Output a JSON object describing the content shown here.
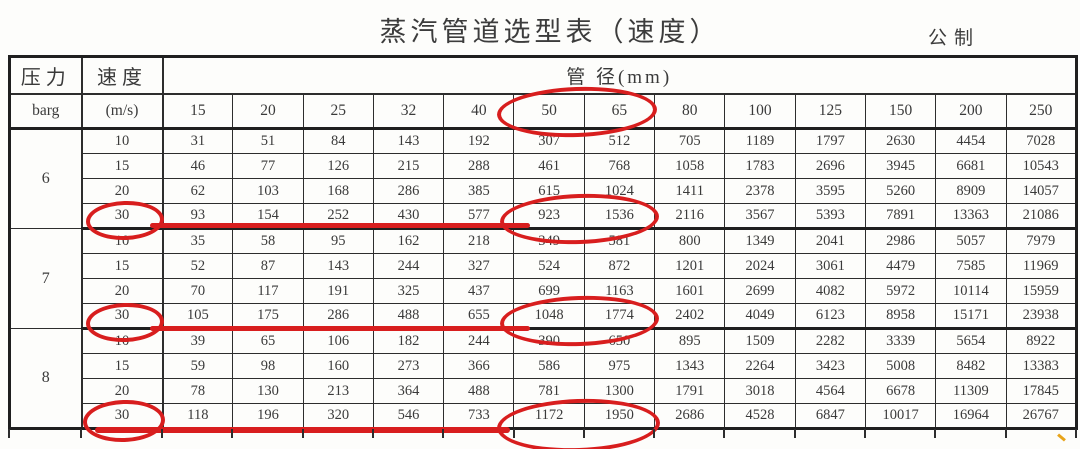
{
  "title": "蒸汽管道选型表（速度）",
  "unit_label": "公制",
  "table": {
    "col1_header": "压力",
    "col2_header": "速度",
    "span_header": "管 径(mm)",
    "col1_subheader": "barg",
    "col2_subheader": "(m/s)",
    "diameters": [
      "15",
      "20",
      "25",
      "32",
      "40",
      "50",
      "65",
      "80",
      "100",
      "125",
      "150",
      "200",
      "250"
    ],
    "groups": [
      {
        "pressure": "6",
        "rows": [
          {
            "velocity": "10",
            "values": [
              31,
              51,
              84,
              143,
              192,
              307,
              512,
              705,
              1189,
              1797,
              2630,
              4454,
              7028
            ]
          },
          {
            "velocity": "15",
            "values": [
              46,
              77,
              126,
              215,
              288,
              461,
              768,
              1058,
              1783,
              2696,
              3945,
              6681,
              10543
            ]
          },
          {
            "velocity": "20",
            "values": [
              62,
              103,
              168,
              286,
              385,
              615,
              1024,
              1411,
              2378,
              3595,
              5260,
              8909,
              14057
            ]
          },
          {
            "velocity": "30",
            "values": [
              93,
              154,
              252,
              430,
              577,
              923,
              1536,
              2116,
              3567,
              5393,
              7891,
              13363,
              21086
            ]
          }
        ]
      },
      {
        "pressure": "7",
        "rows": [
          {
            "velocity": "10",
            "values": [
              35,
              58,
              95,
              162,
              218,
              349,
              581,
              800,
              1349,
              2041,
              2986,
              5057,
              7979
            ]
          },
          {
            "velocity": "15",
            "values": [
              52,
              87,
              143,
              244,
              327,
              524,
              872,
              1201,
              2024,
              3061,
              4479,
              7585,
              11969
            ]
          },
          {
            "velocity": "20",
            "values": [
              70,
              117,
              191,
              325,
              437,
              699,
              1163,
              1601,
              2699,
              4082,
              5972,
              10114,
              15959
            ]
          },
          {
            "velocity": "30",
            "values": [
              105,
              175,
              286,
              488,
              655,
              1048,
              1774,
              2402,
              4049,
              6123,
              8958,
              15171,
              23938
            ]
          }
        ]
      },
      {
        "pressure": "8",
        "rows": [
          {
            "velocity": "10",
            "values": [
              39,
              65,
              106,
              182,
              244,
              390,
              650,
              895,
              1509,
              2282,
              3339,
              5654,
              8922
            ]
          },
          {
            "velocity": "15",
            "values": [
              59,
              98,
              160,
              273,
              366,
              586,
              975,
              1343,
              2264,
              3423,
              5008,
              8482,
              13383
            ]
          },
          {
            "velocity": "20",
            "values": [
              78,
              130,
              213,
              364,
              488,
              781,
              1300,
              1791,
              3018,
              4564,
              6678,
              11309,
              17845
            ]
          },
          {
            "velocity": "30",
            "values": [
              118,
              196,
              320,
              546,
              733,
              1172,
              1950,
              2686,
              4528,
              6847,
              10017,
              16964,
              26767
            ]
          }
        ]
      }
    ]
  },
  "annotations": {
    "color": "#d81e1e",
    "speck_color": "#e8a41a",
    "circled_items": [
      "diameter columns 50 and 65",
      "velocity 30 row of pressure 6 with values 923 and 1536",
      "velocity 30 row of pressure 7 with values 1048 and 1774",
      "velocity 30 row of pressure 8 with values 1172 and 1950"
    ]
  }
}
